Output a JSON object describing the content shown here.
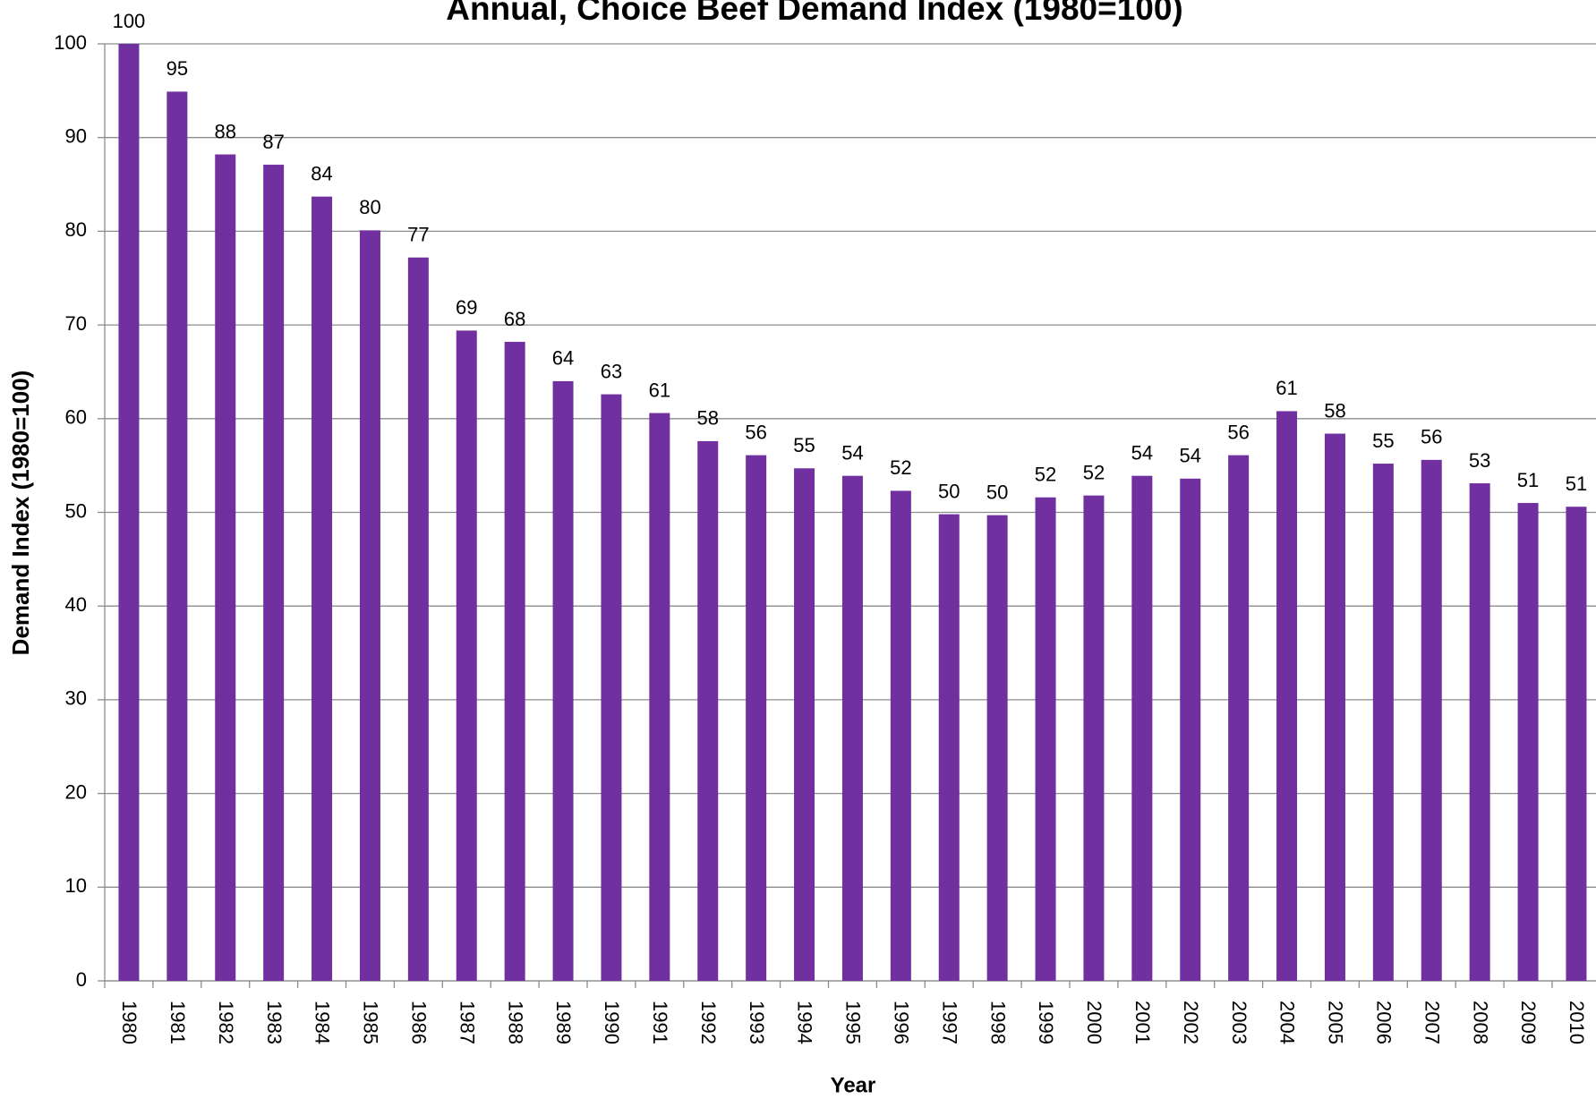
{
  "chart_data": {
    "type": "bar",
    "title": "Annual, Choice Beef Demand Index (1980=100)",
    "x_label": "Year",
    "y_label": "Demand Index (1980=100)",
    "categories": [
      "1980",
      "1981",
      "1982",
      "1983",
      "1984",
      "1985",
      "1986",
      "1987",
      "1988",
      "1989",
      "1990",
      "1991",
      "1992",
      "1993",
      "1994",
      "1995",
      "1996",
      "1997",
      "1998",
      "1999",
      "2000",
      "2001",
      "2002",
      "2003",
      "2004",
      "2005",
      "2006",
      "2007",
      "2008",
      "2009",
      "2010"
    ],
    "values": [
      100,
      94.9,
      88.2,
      87.1,
      83.7,
      80.1,
      77.2,
      69.4,
      68.2,
      64.0,
      62.6,
      60.6,
      57.6,
      56.1,
      54.7,
      53.9,
      52.3,
      49.8,
      49.7,
      51.6,
      51.8,
      53.9,
      53.6,
      56.1,
      60.8,
      58.4,
      55.2,
      55.6,
      53.1,
      51.0,
      50.6
    ],
    "value_labels": [
      "100",
      "95",
      "88",
      "87",
      "84",
      "80",
      "77",
      "69",
      "68",
      "64",
      "63",
      "61",
      "58",
      "56",
      "55",
      "54",
      "52",
      "50",
      "50",
      "52",
      "52",
      "54",
      "54",
      "56",
      "61",
      "58",
      "55",
      "56",
      "53",
      "51",
      "51"
    ],
    "color": "#7030a0",
    "ylim": [
      0,
      100
    ],
    "yticks": [
      0,
      10,
      20,
      30,
      40,
      50,
      60,
      70,
      80,
      90,
      100
    ],
    "grid": true
  }
}
